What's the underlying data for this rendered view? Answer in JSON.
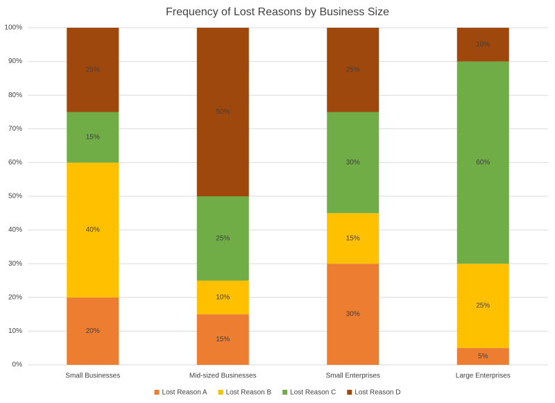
{
  "chart_data": {
    "type": "stacked-bar",
    "title": "Frequency of Lost Reasons by Business Size",
    "categories": [
      "Small Businesses",
      "Mid-sized Businesses",
      "Small Enterprises",
      "Large Enterprises"
    ],
    "series": [
      {
        "name": "Lost Reason A",
        "color": "#ED7D31",
        "values": [
          20,
          15,
          30,
          5
        ],
        "value_labels": [
          "20%",
          "15%",
          "30%",
          "5%"
        ]
      },
      {
        "name": "Lost Reason B",
        "color": "#FFC000",
        "values": [
          40,
          10,
          15,
          25
        ],
        "value_labels": [
          "40%",
          "10%",
          "15%",
          "25%"
        ]
      },
      {
        "name": "Lost Reason C",
        "color": "#70AD47",
        "values": [
          15,
          25,
          30,
          60
        ],
        "value_labels": [
          "15%",
          "25%",
          "30%",
          "60%"
        ]
      },
      {
        "name": "Lost Reason D",
        "color": "#9E480E",
        "values": [
          25,
          50,
          25,
          10
        ],
        "value_labels": [
          "25%",
          "50%",
          "25%",
          "10%"
        ]
      }
    ],
    "ylim": [
      0,
      100
    ],
    "yticks": [
      {
        "value": 0,
        "label": "0%"
      },
      {
        "value": 10,
        "label": "10%"
      },
      {
        "value": 20,
        "label": "20%"
      },
      {
        "value": 30,
        "label": "30%"
      },
      {
        "value": 40,
        "label": "40%"
      },
      {
        "value": 50,
        "label": "50%"
      },
      {
        "value": 60,
        "label": "60%"
      },
      {
        "value": 70,
        "label": "70%"
      },
      {
        "value": 80,
        "label": "80%"
      },
      {
        "value": 90,
        "label": "90%"
      },
      {
        "value": 100,
        "label": "100%"
      }
    ],
    "grid": true,
    "legend": "bottom"
  }
}
